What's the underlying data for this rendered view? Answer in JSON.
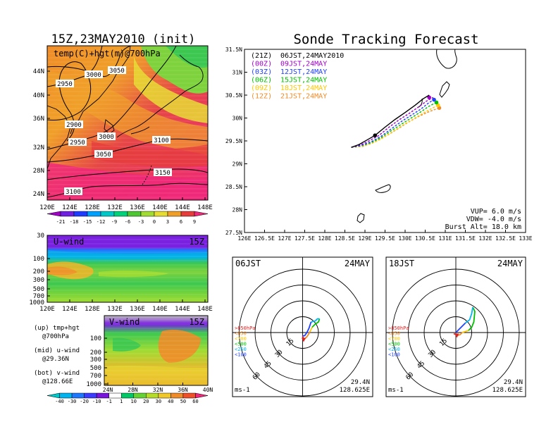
{
  "page": {
    "left_title": "15Z,23MAY2010 (init)",
    "right_title": "Sonde Tracking Forecast"
  },
  "colors": {
    "c00": "#a000c8",
    "c03": "#2040ff",
    "c06": "#00c000",
    "c09": "#ffc800",
    "c12": "#f08c28"
  },
  "chart_data": [
    {
      "id": "top-left-map",
      "type": "heatmap",
      "title": "temp(C)+hgt(m)@700hPa",
      "x_ticks": [
        "120E",
        "124E",
        "128E",
        "132E",
        "136E",
        "140E",
        "144E",
        "148E"
      ],
      "y_ticks": [
        "24N",
        "28N",
        "32N",
        "36N",
        "40N",
        "44N"
      ],
      "contour_labels": [
        "3050",
        "3000",
        "2950",
        "2900",
        "3000",
        "2950",
        "3050",
        "3100",
        "3150",
        "3100"
      ],
      "colorbar": [
        "-21",
        "-18",
        "-15",
        "-12",
        "-9",
        "-6",
        "-3",
        "0",
        "3",
        "6",
        "9"
      ],
      "colorbar_colors": [
        "#a000c8",
        "#7020e0",
        "#1e3cff",
        "#00a0ff",
        "#00c8c8",
        "#00d27a",
        "#4ec832",
        "#a0dc32",
        "#e6dc32",
        "#f0a028",
        "#e63c3c",
        "#f0287a"
      ]
    },
    {
      "id": "u-wind",
      "type": "heatmap",
      "title": "U-wind",
      "time": "15Z",
      "y_ticks": [
        "30",
        "100",
        "200",
        "300",
        "500",
        "700",
        "1000"
      ],
      "x_ticks": [
        "120E",
        "124E",
        "128E",
        "132E",
        "136E",
        "140E",
        "144E",
        "148E"
      ]
    },
    {
      "id": "v-wind",
      "type": "heatmap",
      "title": "V-wind",
      "time": "15Z",
      "y_ticks": [
        "100",
        "200",
        "300",
        "500",
        "700",
        "1000"
      ],
      "x_ticks": [
        "24N",
        "28N",
        "32N",
        "36N",
        "40N"
      ],
      "colorbar": [
        "-40",
        "-30",
        "-20",
        "-10",
        "-1",
        "1",
        "10",
        "20",
        "30",
        "40",
        "50",
        "60"
      ],
      "colorbar_colors": [
        "#00c8c8",
        "#00b4f0",
        "#1e78ff",
        "#3c3cff",
        "#7814dc",
        "#ffffff",
        "#00c864",
        "#64d232",
        "#b4dc28",
        "#f0c828",
        "#f08c28",
        "#f05028",
        "#f0287a"
      ]
    },
    {
      "id": "track",
      "type": "line",
      "x_ticks": [
        "126E",
        "126.5E",
        "127E",
        "127.5E",
        "128E",
        "128.5E",
        "129E",
        "129.5E",
        "130E",
        "130.5E",
        "131E",
        "131.5E",
        "132E",
        "132.5E",
        "133E"
      ],
      "y_ticks": [
        "27.5N",
        "28N",
        "28.5N",
        "29N",
        "29.5N",
        "30N",
        "30.5N",
        "31N",
        "31.5N"
      ],
      "xlim": [
        126,
        133
      ],
      "ylim": [
        27.5,
        31.5
      ],
      "legend": [
        {
          "code": "(21Z)",
          "time": "06JST,24MAY2010",
          "color": "#000000"
        },
        {
          "code": "(00Z)",
          "time": "09JST,24MAY",
          "color": "#a000c8"
        },
        {
          "code": "(03Z)",
          "time": "12JST,24MAY",
          "color": "#2040ff"
        },
        {
          "code": "(06Z)",
          "time": "15JST,24MAY",
          "color": "#00c000"
        },
        {
          "code": "(09Z)",
          "time": "18JST,24MAY",
          "color": "#ffc800"
        },
        {
          "code": "(12Z)",
          "time": "21JST,24MAY",
          "color": "#f08c28"
        }
      ],
      "params": [
        "VUP=  6.0  m/s",
        "VDW= -4.0  m/s",
        "Burst Alt= 18.0  km"
      ],
      "series": [
        {
          "color": "#000000",
          "dash": false,
          "x": [
            128.66,
            128.85,
            129.05,
            129.25,
            129.5,
            129.75,
            130.0,
            130.25,
            130.45,
            130.6
          ],
          "y": [
            29.36,
            29.42,
            29.52,
            29.62,
            29.8,
            29.97,
            30.12,
            30.28,
            30.42,
            30.5
          ],
          "marker_x": 129.25,
          "marker_y": 29.62
        },
        {
          "color": "#a000c8",
          "dash": true,
          "x": [
            128.66,
            128.88,
            129.1,
            129.35,
            129.6,
            129.85,
            130.1,
            130.35,
            130.55,
            130.7
          ],
          "y": [
            29.36,
            29.41,
            29.5,
            29.62,
            29.8,
            29.96,
            30.1,
            30.25,
            30.38,
            30.45
          ],
          "marker_x": 130.6,
          "marker_y": 30.45
        },
        {
          "color": "#2040ff",
          "dash": true,
          "x": [
            128.66,
            128.9,
            129.15,
            129.4,
            129.65,
            129.9,
            130.15,
            130.4,
            130.6,
            130.72
          ],
          "y": [
            29.36,
            29.4,
            29.48,
            29.6,
            29.76,
            29.92,
            30.06,
            30.2,
            30.34,
            30.4
          ],
          "marker_x": 130.72,
          "marker_y": 30.4
        },
        {
          "color": "#00c000",
          "dash": true,
          "x": [
            128.66,
            128.9,
            129.15,
            129.4,
            129.65,
            129.9,
            130.15,
            130.4,
            130.6,
            130.78
          ],
          "y": [
            29.36,
            29.39,
            29.46,
            29.57,
            29.72,
            29.86,
            30.0,
            30.14,
            30.26,
            30.34
          ],
          "marker_x": 130.78,
          "marker_y": 30.34
        },
        {
          "color": "#ffc800",
          "dash": true,
          "x": [
            128.66,
            128.9,
            129.15,
            129.4,
            129.65,
            129.9,
            130.15,
            130.4,
            130.6,
            130.82
          ],
          "y": [
            29.36,
            29.38,
            29.44,
            29.54,
            29.68,
            29.82,
            29.95,
            30.08,
            30.18,
            30.28
          ],
          "marker_x": 130.82,
          "marker_y": 30.28
        },
        {
          "color": "#f08c28",
          "dash": true,
          "x": [
            128.66,
            128.95,
            129.25,
            129.55,
            129.85,
            130.1,
            130.35,
            130.6,
            130.85
          ],
          "y": [
            29.36,
            29.38,
            29.48,
            29.62,
            29.78,
            29.92,
            30.04,
            30.14,
            30.22
          ],
          "marker_x": 130.85,
          "marker_y": 30.22
        }
      ]
    },
    {
      "id": "hodo-06",
      "type": "line",
      "title": "06JST",
      "date": "24MAY",
      "ring_labels": [
        "15",
        "30",
        "45",
        "60"
      ],
      "levels": [
        ">850hPa",
        "<850",
        "<700",
        "<500",
        "<250",
        "<100"
      ],
      "level_colors": [
        "#e02020",
        "#f08c28",
        "#ffc800",
        "#00c000",
        "#00b4f0",
        "#2040ff"
      ],
      "units": "ms-1",
      "lat": "29.4N",
      "lon": "128.625E",
      "series": [
        {
          "color": "#e02020",
          "x": [
            0,
            0.5,
            1
          ],
          "y": [
            -3,
            -5,
            -7
          ]
        },
        {
          "color": "#f08c28",
          "x": [
            1,
            4,
            6,
            7
          ],
          "y": [
            -7,
            -4,
            -1,
            1
          ]
        },
        {
          "color": "#ffc800",
          "x": [
            7,
            8,
            9
          ],
          "y": [
            1,
            3,
            5
          ]
        },
        {
          "color": "#00c000",
          "x": [
            9,
            12,
            15,
            16
          ],
          "y": [
            5,
            8,
            10,
            13
          ]
        },
        {
          "color": "#00b4f0",
          "x": [
            16,
            14,
            12,
            8
          ],
          "y": [
            13,
            13,
            11,
            10
          ]
        },
        {
          "color": "#2040ff",
          "x": [
            8,
            6,
            4,
            2,
            0
          ],
          "y": [
            10,
            4,
            0,
            -3,
            -3
          ]
        }
      ]
    },
    {
      "id": "hodo-18",
      "type": "line",
      "title": "18JST",
      "date": "24MAY",
      "ring_labels": [
        "15",
        "30",
        "45",
        "60"
      ],
      "levels": [
        ">850hPa",
        "<850",
        "<700",
        "<500",
        "<250",
        "<100"
      ],
      "level_colors": [
        "#e02020",
        "#f08c28",
        "#ffc800",
        "#00c000",
        "#00b4f0",
        "#2040ff"
      ],
      "units": "ms-1",
      "lat": "29.4N",
      "lon": "128.625E",
      "series": [
        {
          "color": "#e02020",
          "x": [
            -2,
            0,
            1
          ],
          "y": [
            -1,
            -2,
            -3
          ]
        },
        {
          "color": "#f08c28",
          "x": [
            1,
            4,
            6
          ],
          "y": [
            -3,
            -2,
            0
          ]
        },
        {
          "color": "#ffc800",
          "x": [
            6,
            9,
            12
          ],
          "y": [
            0,
            1,
            2
          ]
        },
        {
          "color": "#00c000",
          "x": [
            12,
            15,
            17,
            18,
            16
          ],
          "y": [
            2,
            5,
            10,
            20,
            24
          ]
        },
        {
          "color": "#00b4f0",
          "x": [
            16,
            15,
            13,
            9
          ],
          "y": [
            24,
            18,
            12,
            9
          ]
        },
        {
          "color": "#2040ff",
          "x": [
            9,
            5,
            2,
            0
          ],
          "y": [
            9,
            5,
            2,
            0
          ]
        }
      ]
    }
  ]
}
